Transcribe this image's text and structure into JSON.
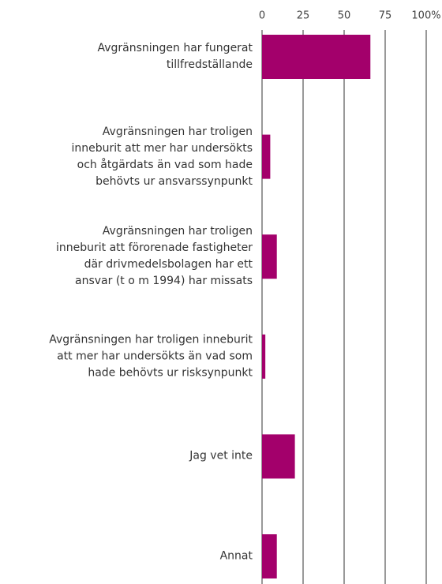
{
  "chart_data": {
    "type": "barh",
    "categories": [
      "Avgränsningen har fungerat\ntillfredställande",
      "Avgränsningen har troligen\ninneburit att mer har undersökts\noch åtgärdats än vad som hade\nbehövts ur ansvarssynpunkt",
      "Avgränsningen har troligen\ninneburit att förorenade fastigheter\ndär drivmedelsbolagen har ett\nansvar (t o m 1994) har missats",
      "Avgränsningen har troligen inneburit\natt mer har undersökts än vad som\nhade behövts ur risksynpunkt",
      "Jag vet inte",
      "Annat"
    ],
    "values": [
      66,
      5,
      9,
      2,
      20,
      9
    ],
    "color": "#a3006b",
    "xlim": [
      0,
      100
    ],
    "xticks": [
      0,
      25,
      50,
      75,
      {
        "value": 100,
        "label": "100%"
      }
    ],
    "grid": true
  }
}
